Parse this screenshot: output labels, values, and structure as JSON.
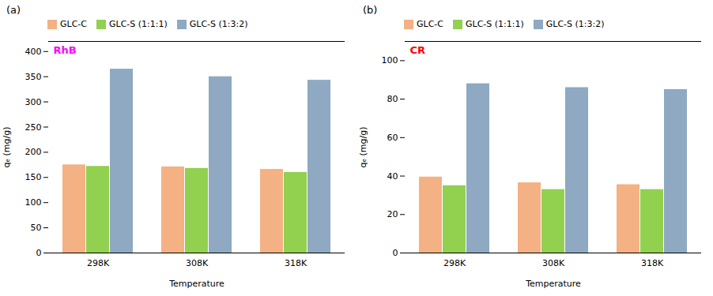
{
  "chart_data": [
    {
      "type": "bar",
      "title": "(a)",
      "categories": [
        "298K",
        "308K",
        "318K"
      ],
      "series": [
        {
          "name": "GLC-C",
          "color": "#f4b183",
          "values": [
            175,
            171,
            166
          ]
        },
        {
          "name": "GLC-S (1:1:1)",
          "color": "#92d050",
          "values": [
            172,
            168,
            160
          ]
        },
        {
          "name": "GLC-S (1:3:2)",
          "color": "#8ea9c1",
          "values": [
            365,
            350,
            343
          ]
        }
      ],
      "xlabel": "Temperature",
      "ylabel": "qₑ (mg/g)",
      "ylim": [
        0,
        420
      ],
      "yticks": [
        0,
        50,
        100,
        150,
        200,
        250,
        300,
        350,
        400
      ],
      "annotations": [
        {
          "text": "RhB",
          "color": "#ff00ff"
        }
      ],
      "legend": "top",
      "grid": false
    },
    {
      "type": "bar",
      "title": "(b)",
      "categories": [
        "298K",
        "308K",
        "318K"
      ],
      "series": [
        {
          "name": "GLC-C",
          "color": "#f4b183",
          "values": [
            39.5,
            36.5,
            35.5
          ]
        },
        {
          "name": "GLC-S (1:1:1)",
          "color": "#92d050",
          "values": [
            35,
            33,
            33
          ]
        },
        {
          "name": "GLC-S (1:3:2)",
          "color": "#8ea9c1",
          "values": [
            88,
            86,
            85
          ]
        }
      ],
      "xlabel": "Temperature",
      "ylabel": "qₑ (mg/g)",
      "ylim": [
        0,
        110
      ],
      "yticks": [
        0,
        20,
        40,
        60,
        80,
        100
      ],
      "annotations": [
        {
          "text": "CR",
          "color": "#ff0000"
        }
      ],
      "legend": "top",
      "grid": false
    }
  ]
}
